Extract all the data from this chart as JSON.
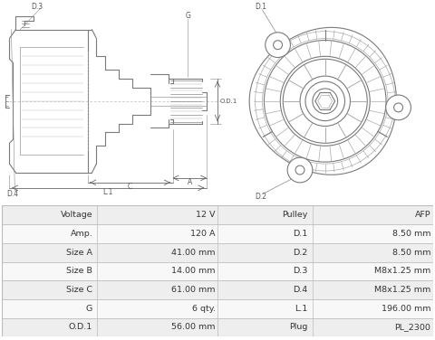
{
  "bg_color": "#ffffff",
  "table_bg_row_even": "#eeeeee",
  "table_bg_row_odd": "#f8f8f8",
  "table_border": "#bbbbbb",
  "rows": [
    [
      "Voltage",
      "12 V",
      "Pulley",
      "AFP"
    ],
    [
      "Amp.",
      "120 A",
      "D.1",
      "8.50 mm"
    ],
    [
      "Size A",
      "41.00 mm",
      "D.2",
      "8.50 mm"
    ],
    [
      "Size B",
      "14.00 mm",
      "D.3",
      "M8x1.25 mm"
    ],
    [
      "Size C",
      "61.00 mm",
      "D.4",
      "M8x1.25 mm"
    ],
    [
      "G",
      "6 qty.",
      "L.1",
      "196.00 mm"
    ],
    [
      "O.D.1",
      "56.00 mm",
      "Plug",
      "PL_2300"
    ]
  ],
  "dc": "#7a7a7a",
  "lc": "#555555",
  "drawing_area": [
    0.0,
    0.4,
    1.0,
    0.6
  ],
  "table_area": [
    0.005,
    0.01,
    0.99,
    0.385
  ]
}
